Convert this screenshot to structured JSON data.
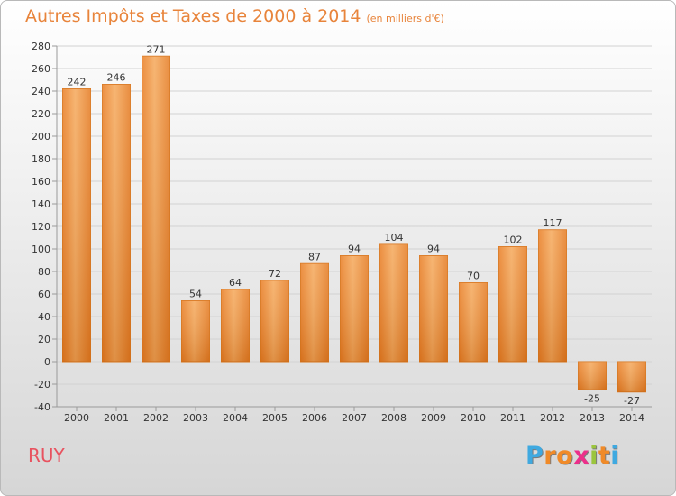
{
  "chart_data": {
    "type": "bar",
    "title": "Autres Impôts et Taxes de 2000 à 2014",
    "subtitle": "(en milliers d'€)",
    "categories": [
      "2000",
      "2001",
      "2002",
      "2003",
      "2004",
      "2005",
      "2006",
      "2007",
      "2008",
      "2009",
      "2010",
      "2011",
      "2012",
      "2013",
      "2014"
    ],
    "values": [
      242,
      246,
      271,
      54,
      64,
      72,
      87,
      94,
      104,
      94,
      70,
      102,
      117,
      -25,
      -27
    ],
    "ylim": [
      -40,
      280
    ],
    "yticks": [
      -40,
      -20,
      0,
      20,
      40,
      60,
      80,
      100,
      120,
      140,
      160,
      180,
      200,
      220,
      240,
      260,
      280
    ],
    "grid": true,
    "bar_color": "#f0913a"
  },
  "place": "RUY",
  "brand": {
    "letters": [
      "P",
      "r",
      "o",
      "x",
      "i",
      "t",
      "i"
    ],
    "colors": [
      "#3fa9e0",
      "#f08a28",
      "#f08a28",
      "#ec2f8a",
      "#9bc53d",
      "#f08a28",
      "#3fa9e0"
    ]
  }
}
